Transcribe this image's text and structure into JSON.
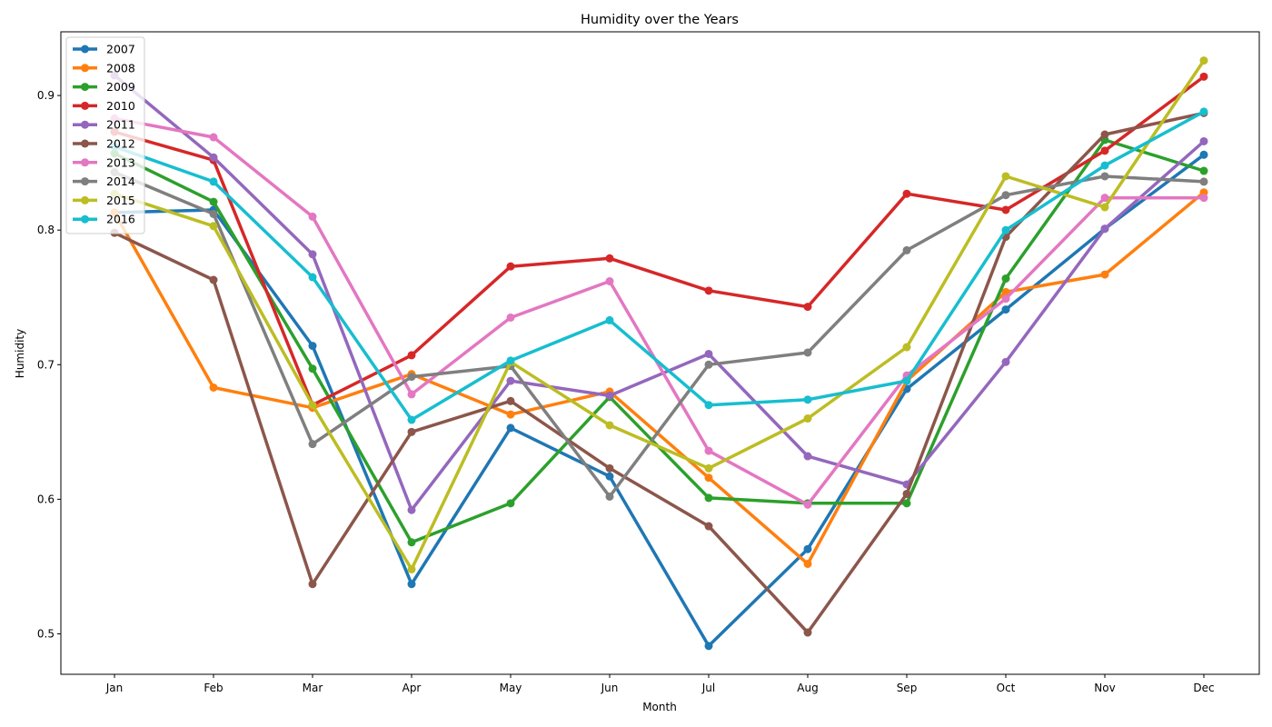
{
  "chart_data": {
    "type": "line",
    "title": "Humidity over the Years",
    "xlabel": "Month",
    "ylabel": "Humidity",
    "categories": [
      "Jan",
      "Feb",
      "Mar",
      "Apr",
      "May",
      "Jun",
      "Jul",
      "Aug",
      "Sep",
      "Oct",
      "Nov",
      "Dec"
    ],
    "yticks": [
      "0.5",
      "0.6",
      "0.7",
      "0.8",
      "0.9"
    ],
    "ylim": [
      0.47,
      0.945
    ],
    "grid": false,
    "legend_position": "upper-left",
    "series": [
      {
        "name": "2007",
        "color": "#1f77b4",
        "values": [
          0.813,
          0.815,
          0.714,
          0.537,
          0.653,
          0.617,
          0.491,
          0.563,
          0.682,
          0.741,
          0.801,
          0.856
        ]
      },
      {
        "name": "2008",
        "color": "#ff7f0e",
        "values": [
          0.813,
          0.683,
          0.668,
          0.693,
          0.663,
          0.68,
          0.616,
          0.552,
          0.688,
          0.754,
          0.767,
          0.828
        ]
      },
      {
        "name": "2009",
        "color": "#2ca02c",
        "values": [
          0.857,
          0.821,
          0.697,
          0.568,
          0.597,
          0.676,
          0.601,
          0.597,
          0.597,
          0.764,
          0.867,
          0.844
        ]
      },
      {
        "name": "2010",
        "color": "#d62728",
        "values": [
          0.873,
          0.852,
          0.67,
          0.707,
          0.773,
          0.779,
          0.755,
          0.743,
          0.827,
          0.815,
          0.859,
          0.914
        ]
      },
      {
        "name": "2011",
        "color": "#9467bd",
        "values": [
          0.915,
          0.854,
          0.782,
          0.592,
          0.688,
          0.677,
          0.708,
          0.632,
          0.611,
          0.702,
          0.801,
          0.866
        ]
      },
      {
        "name": "2012",
        "color": "#8c564b",
        "values": [
          0.798,
          0.763,
          0.537,
          0.65,
          0.673,
          0.623,
          0.58,
          0.501,
          0.604,
          0.795,
          0.871,
          0.887
        ]
      },
      {
        "name": "2013",
        "color": "#e377c2",
        "values": [
          0.883,
          0.869,
          0.81,
          0.678,
          0.735,
          0.762,
          0.636,
          0.596,
          0.692,
          0.749,
          0.824,
          0.824
        ]
      },
      {
        "name": "2014",
        "color": "#7f7f7f",
        "values": [
          0.843,
          0.812,
          0.641,
          0.691,
          0.699,
          0.602,
          0.7,
          0.709,
          0.785,
          0.826,
          0.84,
          0.836
        ]
      },
      {
        "name": "2015",
        "color": "#bcbd22",
        "values": [
          0.827,
          0.803,
          0.67,
          0.548,
          0.702,
          0.655,
          0.623,
          0.66,
          0.713,
          0.84,
          0.817,
          0.926
        ]
      },
      {
        "name": "2016",
        "color": "#17becf",
        "values": [
          0.862,
          0.836,
          0.765,
          0.659,
          0.703,
          0.733,
          0.67,
          0.674,
          0.688,
          0.8,
          0.848,
          0.888
        ]
      }
    ]
  }
}
